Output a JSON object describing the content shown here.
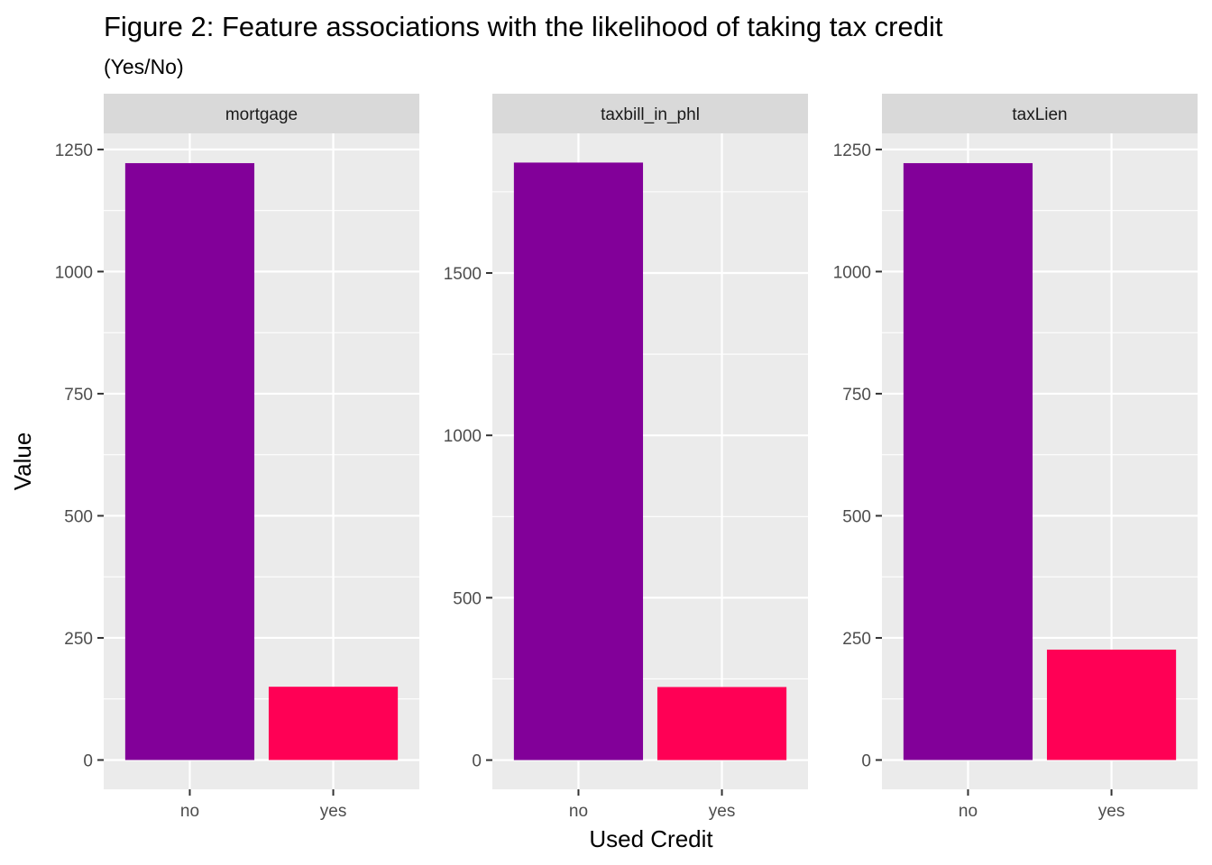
{
  "chart_data": {
    "type": "bar",
    "title": "Figure 2: Feature associations with the likelihood of taking tax credit",
    "subtitle": "(Yes/No)",
    "xlabel": "Used Credit",
    "ylabel": "Value",
    "categories": [
      "no",
      "yes"
    ],
    "colors": {
      "no": "#820099",
      "yes": "#FF0055"
    },
    "grid": true,
    "legend": "none",
    "panels": [
      {
        "name": "mortgage",
        "values": [
          1222,
          150
        ],
        "ylim": [
          -60,
          1283
        ],
        "ticks": [
          0,
          250,
          500,
          750,
          1000,
          1250
        ],
        "tick_labels": [
          "0",
          "250",
          "500",
          "750",
          "1000",
          "1250"
        ]
      },
      {
        "name": "taxbill_in_phl",
        "values": [
          1840,
          225
        ],
        "ylim": [
          -90,
          1930
        ],
        "ticks": [
          0,
          500,
          1000,
          1500
        ],
        "tick_labels": [
          "0",
          "500",
          "1000",
          "1500"
        ]
      },
      {
        "name": "taxLien",
        "values": [
          1222,
          226
        ],
        "ylim": [
          -60,
          1283
        ],
        "ticks": [
          0,
          250,
          500,
          750,
          1000,
          1250
        ],
        "tick_labels": [
          "0",
          "250",
          "500",
          "750",
          "1000",
          "1250"
        ]
      }
    ]
  }
}
